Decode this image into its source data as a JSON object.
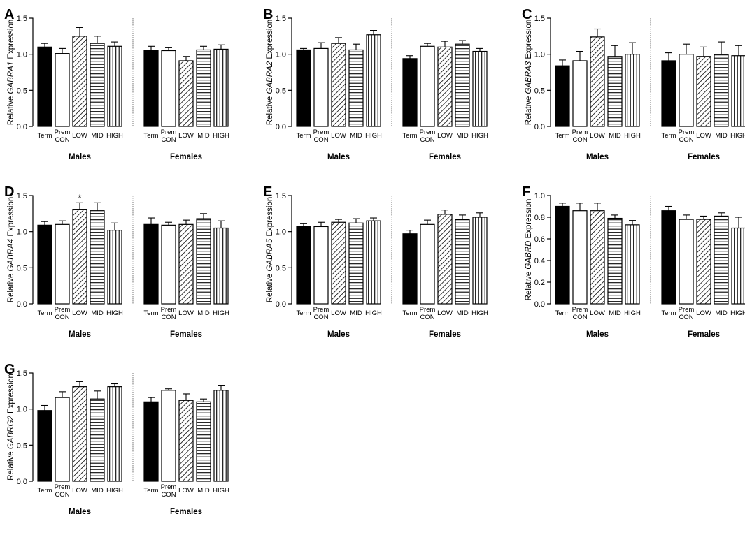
{
  "figure": {
    "groups": [
      "Term",
      "Prem CON",
      "LOW",
      "MID",
      "HIGH"
    ],
    "sexes": [
      "Males",
      "Females"
    ]
  },
  "chart_data": [
    {
      "type": "bar",
      "panel": "A",
      "gene": "GABRA1",
      "ylabel_prefix": "Relative ",
      "ylabel_gene": "GABRA1",
      "ylabel_suffix": " Expression",
      "ylim": [
        0,
        1.5
      ],
      "yticks": [
        "0.0",
        "0.5",
        "1.0",
        "1.5"
      ],
      "ytick_values": [
        0,
        0.5,
        1.0,
        1.5
      ],
      "categories": [
        "Term",
        "Prem CON",
        "LOW",
        "MID",
        "HIGH"
      ],
      "patterns": [
        "solid",
        "open",
        "diagonal",
        "horizontal",
        "vertical"
      ],
      "series": [
        {
          "name": "Males",
          "values": [
            1.1,
            1.01,
            1.25,
            1.15,
            1.11
          ],
          "errors": [
            0.05,
            0.07,
            0.12,
            0.1,
            0.06
          ]
        },
        {
          "name": "Females",
          "values": [
            1.05,
            1.05,
            0.91,
            1.06,
            1.07
          ],
          "errors": [
            0.06,
            0.04,
            0.06,
            0.05,
            0.06
          ]
        }
      ],
      "annotations": []
    },
    {
      "type": "bar",
      "panel": "B",
      "gene": "GABRA2",
      "ylabel_prefix": "Relative ",
      "ylabel_gene": "GABRA2",
      "ylabel_suffix": " Expression",
      "ylim": [
        0,
        1.5
      ],
      "yticks": [
        "0.0",
        "0.5",
        "1.0",
        "1.5"
      ],
      "ytick_values": [
        0,
        0.5,
        1.0,
        1.5
      ],
      "categories": [
        "Term",
        "Prem CON",
        "LOW",
        "MID",
        "HIGH"
      ],
      "patterns": [
        "solid",
        "open",
        "diagonal",
        "horizontal",
        "vertical"
      ],
      "series": [
        {
          "name": "Males",
          "values": [
            1.06,
            1.08,
            1.15,
            1.06,
            1.27
          ],
          "errors": [
            0.02,
            0.08,
            0.08,
            0.08,
            0.06
          ]
        },
        {
          "name": "Females",
          "values": [
            0.94,
            1.11,
            1.1,
            1.14,
            1.04
          ],
          "errors": [
            0.04,
            0.04,
            0.08,
            0.05,
            0.04
          ]
        }
      ],
      "annotations": []
    },
    {
      "type": "bar",
      "panel": "C",
      "gene": "GABRA3",
      "ylabel_prefix": "Relative ",
      "ylabel_gene": "GABRA3",
      "ylabel_suffix": " Expression",
      "ylim": [
        0,
        1.5
      ],
      "yticks": [
        "0.0",
        "0.5",
        "1.0",
        "1.5"
      ],
      "ytick_values": [
        0,
        0.5,
        1.0,
        1.5
      ],
      "categories": [
        "Term",
        "Prem CON",
        "LOW",
        "MID",
        "HIGH"
      ],
      "patterns": [
        "solid",
        "open",
        "diagonal",
        "horizontal",
        "vertical"
      ],
      "series": [
        {
          "name": "Males",
          "values": [
            0.84,
            0.91,
            1.24,
            0.97,
            1.0
          ],
          "errors": [
            0.08,
            0.13,
            0.11,
            0.15,
            0.16
          ]
        },
        {
          "name": "Females",
          "values": [
            0.91,
            1.0,
            0.97,
            1.0,
            0.98
          ],
          "errors": [
            0.11,
            0.14,
            0.13,
            0.17,
            0.14
          ]
        }
      ],
      "annotations": []
    },
    {
      "type": "bar",
      "panel": "D",
      "gene": "GABRA4",
      "ylabel_prefix": "Relative ",
      "ylabel_gene": "GABRA4",
      "ylabel_suffix": " Expression",
      "ylim": [
        0,
        1.5
      ],
      "yticks": [
        "0.0",
        "0.5",
        "1.0",
        "1.5"
      ],
      "ytick_values": [
        0,
        0.5,
        1.0,
        1.5
      ],
      "categories": [
        "Term",
        "Prem CON",
        "LOW",
        "MID",
        "HIGH"
      ],
      "patterns": [
        "solid",
        "open",
        "diagonal",
        "horizontal",
        "vertical"
      ],
      "series": [
        {
          "name": "Males",
          "values": [
            1.09,
            1.1,
            1.31,
            1.29,
            1.02
          ],
          "errors": [
            0.05,
            0.05,
            0.09,
            0.11,
            0.1
          ]
        },
        {
          "name": "Females",
          "values": [
            1.1,
            1.09,
            1.1,
            1.18,
            1.05
          ],
          "errors": [
            0.09,
            0.04,
            0.06,
            0.07,
            0.1
          ]
        }
      ],
      "annotations": [
        {
          "series": 0,
          "category": 2,
          "text": "*"
        }
      ]
    },
    {
      "type": "bar",
      "panel": "E",
      "gene": "GABRA5",
      "ylabel_prefix": "Relative ",
      "ylabel_gene": "GABRA5",
      "ylabel_suffix": " Expression",
      "ylim": [
        0,
        1.5
      ],
      "yticks": [
        "0.0",
        "0.5",
        "1.0",
        "1.5"
      ],
      "ytick_values": [
        0,
        0.5,
        1.0,
        1.5
      ],
      "categories": [
        "Term",
        "Prem CON",
        "LOW",
        "MID",
        "HIGH"
      ],
      "patterns": [
        "solid",
        "open",
        "diagonal",
        "horizontal",
        "vertical"
      ],
      "series": [
        {
          "name": "Males",
          "values": [
            1.07,
            1.07,
            1.13,
            1.12,
            1.15
          ],
          "errors": [
            0.04,
            0.06,
            0.04,
            0.06,
            0.04
          ]
        },
        {
          "name": "Females",
          "values": [
            0.97,
            1.1,
            1.24,
            1.17,
            1.2
          ],
          "errors": [
            0.05,
            0.06,
            0.06,
            0.06,
            0.06
          ]
        }
      ],
      "annotations": []
    },
    {
      "type": "bar",
      "panel": "F",
      "gene": "GABRD",
      "ylabel_prefix": "Relative ",
      "ylabel_gene": "GABRD",
      "ylabel_suffix": " Expression",
      "ylim": [
        0,
        1.0
      ],
      "yticks": [
        "0.0",
        "0.2",
        "0.4",
        "0.6",
        "0.8",
        "1.0"
      ],
      "ytick_values": [
        0,
        0.2,
        0.4,
        0.6,
        0.8,
        1.0
      ],
      "categories": [
        "Term",
        "Prem CON",
        "LOW",
        "MID",
        "HIGH"
      ],
      "patterns": [
        "solid",
        "open",
        "diagonal",
        "horizontal",
        "vertical"
      ],
      "series": [
        {
          "name": "Males",
          "values": [
            0.9,
            0.86,
            0.86,
            0.79,
            0.73
          ],
          "errors": [
            0.03,
            0.07,
            0.07,
            0.03,
            0.04
          ]
        },
        {
          "name": "Females",
          "values": [
            0.86,
            0.78,
            0.78,
            0.81,
            0.7
          ],
          "errors": [
            0.04,
            0.04,
            0.03,
            0.03,
            0.1
          ]
        }
      ],
      "annotations": []
    },
    {
      "type": "bar",
      "panel": "G",
      "gene": "GABRG2",
      "ylabel_prefix": "Relative ",
      "ylabel_gene": "GABRG2",
      "ylabel_suffix": " Expression",
      "ylim": [
        0,
        1.5
      ],
      "yticks": [
        "0.0",
        "0.5",
        "1.0",
        "1.5"
      ],
      "ytick_values": [
        0,
        0.5,
        1.0,
        1.5
      ],
      "categories": [
        "Term",
        "Prem CON",
        "LOW",
        "MID",
        "HIGH"
      ],
      "patterns": [
        "solid",
        "open",
        "diagonal",
        "horizontal",
        "vertical"
      ],
      "series": [
        {
          "name": "Males",
          "values": [
            0.98,
            1.16,
            1.31,
            1.14,
            1.31
          ],
          "errors": [
            0.07,
            0.08,
            0.07,
            0.11,
            0.04
          ]
        },
        {
          "name": "Females",
          "values": [
            1.1,
            1.26,
            1.12,
            1.1,
            1.26
          ],
          "errors": [
            0.06,
            0.02,
            0.09,
            0.04,
            0.07
          ]
        }
      ],
      "annotations": []
    }
  ]
}
